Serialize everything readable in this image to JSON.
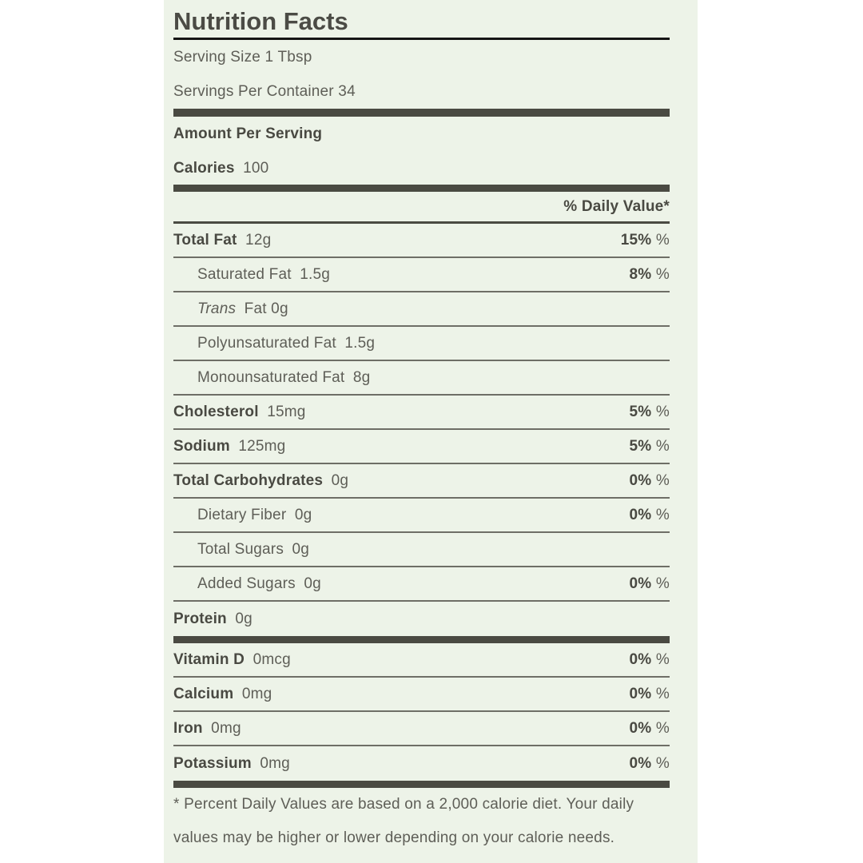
{
  "colors": {
    "panel_background": "#edf3e8",
    "thick_bar": "#4a4a42",
    "separator": "#6e6e66",
    "text_bold": "#494942",
    "text_regular": "#5e5e57",
    "title_underline": "#151515"
  },
  "header": {
    "title": "Nutrition Facts",
    "serving_size": "Serving Size 1 Tbsp",
    "servings_per_container": "Servings Per Container 34",
    "amount_per_serving": "Amount Per Serving",
    "calories_label": "Calories",
    "calories_value": "100",
    "daily_value_header": "% Daily Value*",
    "percent_suffix": "%"
  },
  "nutrients": [
    {
      "label": "Total Fat",
      "bold": true,
      "italic": false,
      "amount": "12g",
      "dv": "15%",
      "indent": 0
    },
    {
      "label": "Saturated Fat",
      "bold": false,
      "italic": false,
      "amount": "1.5g",
      "dv": "8%",
      "indent": 1
    },
    {
      "label": "Trans",
      "bold": false,
      "italic": true,
      "amount": "Fat 0g",
      "dv": "",
      "indent": 1
    },
    {
      "label": "Polyunsaturated Fat",
      "bold": false,
      "italic": false,
      "amount": "1.5g",
      "dv": "",
      "indent": 1
    },
    {
      "label": "Monounsaturated Fat",
      "bold": false,
      "italic": false,
      "amount": "8g",
      "dv": "",
      "indent": 1
    },
    {
      "label": "Cholesterol",
      "bold": true,
      "italic": false,
      "amount": "15mg",
      "dv": "5%",
      "indent": 0
    },
    {
      "label": "Sodium",
      "bold": true,
      "italic": false,
      "amount": "125mg",
      "dv": "5%",
      "indent": 0
    },
    {
      "label": "Total Carbohydrates",
      "bold": true,
      "italic": false,
      "amount": "0g",
      "dv": "0%",
      "indent": 0
    },
    {
      "label": "Dietary Fiber",
      "bold": false,
      "italic": false,
      "amount": "0g",
      "dv": "0%",
      "indent": 1
    },
    {
      "label": "Total Sugars",
      "bold": false,
      "italic": false,
      "amount": "0g",
      "dv": "",
      "indent": 1
    },
    {
      "label": "Added Sugars",
      "bold": false,
      "italic": false,
      "amount": "0g",
      "dv": "0%",
      "indent": 1
    },
    {
      "label": "Protein",
      "bold": true,
      "italic": false,
      "amount": "0g",
      "dv": "",
      "indent": 0
    }
  ],
  "micronutrients": [
    {
      "label": "Vitamin D",
      "bold": true,
      "italic": false,
      "amount": "0mcg",
      "dv": "0%",
      "indent": 0
    },
    {
      "label": "Calcium",
      "bold": true,
      "italic": false,
      "amount": "0mg",
      "dv": "0%",
      "indent": 0
    },
    {
      "label": "Iron",
      "bold": true,
      "italic": false,
      "amount": "0mg",
      "dv": "0%",
      "indent": 0
    },
    {
      "label": "Potassium",
      "bold": true,
      "italic": false,
      "amount": "0mg",
      "dv": "0%",
      "indent": 0
    }
  ],
  "footnote": {
    "line1": "* Percent Daily Values are based on a 2,000 calorie diet. Your daily",
    "line2": "values may be higher or lower depending on your calorie needs."
  }
}
